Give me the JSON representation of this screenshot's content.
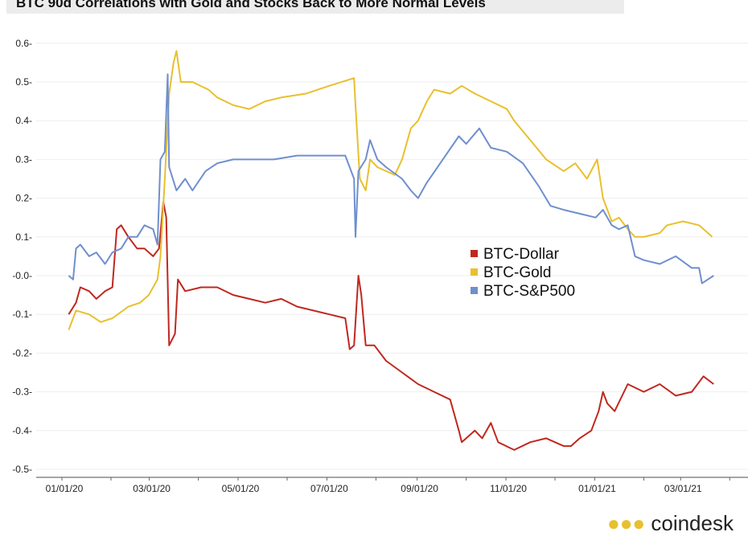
{
  "chart_data": {
    "type": "line",
    "title": "BTC 90d Correlations with Gold and Stocks Back to More Normal Levels",
    "xlabel": "",
    "ylabel": "",
    "x_unit": "days since 01/01/20",
    "xlim": [
      -8,
      460
    ],
    "ylim": [
      -0.5,
      0.6
    ],
    "yticks": [
      0.6,
      0.5,
      0.4,
      0.3,
      0.2,
      0.1,
      0.0,
      -0.1,
      -0.2,
      -0.3,
      -0.4,
      -0.5
    ],
    "ytick_labels": [
      "0.6",
      "0.5",
      "0.4",
      "0.3",
      "0.2",
      "0.1",
      "-0.0",
      "-0.1",
      "-0.2",
      "-0.3",
      "-0.4",
      "-0.5"
    ],
    "xticks": [
      0,
      60,
      121,
      182,
      244,
      305,
      366,
      425
    ],
    "xtick_labels": [
      "01/01/20",
      "03/01/20",
      "05/01/20",
      "07/01/20",
      "09/01/20",
      "11/01/20",
      "01/01/21",
      "03/01/21"
    ],
    "grid": true,
    "legend_position": "center-right",
    "series": [
      {
        "name": "BTC-Dollar",
        "color": "#c0281f",
        "points": [
          [
            3,
            -0.1
          ],
          [
            8,
            -0.07
          ],
          [
            11,
            -0.03
          ],
          [
            17,
            -0.04
          ],
          [
            22,
            -0.06
          ],
          [
            28,
            -0.04
          ],
          [
            33,
            -0.03
          ],
          [
            36,
            0.12
          ],
          [
            39,
            0.13
          ],
          [
            44,
            0.1
          ],
          [
            50,
            0.07
          ],
          [
            55,
            0.07
          ],
          [
            61,
            0.05
          ],
          [
            65,
            0.07
          ],
          [
            68,
            0.19
          ],
          [
            70,
            0.15
          ],
          [
            72,
            -0.18
          ],
          [
            76,
            -0.15
          ],
          [
            78,
            -0.01
          ],
          [
            83,
            -0.04
          ],
          [
            94,
            -0.03
          ],
          [
            105,
            -0.03
          ],
          [
            116,
            -0.05
          ],
          [
            127,
            -0.06
          ],
          [
            138,
            -0.07
          ],
          [
            149,
            -0.06
          ],
          [
            160,
            -0.08
          ],
          [
            171,
            -0.09
          ],
          [
            182,
            -0.1
          ],
          [
            193,
            -0.11
          ],
          [
            196,
            -0.19
          ],
          [
            199,
            -0.18
          ],
          [
            202,
            0.0
          ],
          [
            204,
            -0.05
          ],
          [
            207,
            -0.18
          ],
          [
            213,
            -0.18
          ],
          [
            221,
            -0.22
          ],
          [
            232,
            -0.25
          ],
          [
            243,
            -0.28
          ],
          [
            254,
            -0.3
          ],
          [
            265,
            -0.32
          ],
          [
            271,
            -0.4
          ],
          [
            273,
            -0.43
          ],
          [
            282,
            -0.4
          ],
          [
            287,
            -0.42
          ],
          [
            293,
            -0.38
          ],
          [
            298,
            -0.43
          ],
          [
            309,
            -0.45
          ],
          [
            320,
            -0.43
          ],
          [
            331,
            -0.42
          ],
          [
            343,
            -0.44
          ],
          [
            348,
            -0.44
          ],
          [
            354,
            -0.42
          ],
          [
            362,
            -0.4
          ],
          [
            367,
            -0.35
          ],
          [
            370,
            -0.3
          ],
          [
            373,
            -0.33
          ],
          [
            378,
            -0.35
          ],
          [
            387,
            -0.28
          ],
          [
            398,
            -0.3
          ],
          [
            409,
            -0.28
          ],
          [
            420,
            -0.31
          ],
          [
            431,
            -0.3
          ],
          [
            439,
            -0.26
          ],
          [
            446,
            -0.28
          ]
        ]
      },
      {
        "name": "BTC-Gold",
        "color": "#e8c02f",
        "points": [
          [
            3,
            -0.14
          ],
          [
            8,
            -0.09
          ],
          [
            17,
            -0.1
          ],
          [
            25,
            -0.12
          ],
          [
            33,
            -0.11
          ],
          [
            44,
            -0.08
          ],
          [
            52,
            -0.07
          ],
          [
            58,
            -0.05
          ],
          [
            64,
            -0.01
          ],
          [
            66,
            0.05
          ],
          [
            69,
            0.25
          ],
          [
            72,
            0.47
          ],
          [
            75,
            0.55
          ],
          [
            77,
            0.58
          ],
          [
            80,
            0.5
          ],
          [
            88,
            0.5
          ],
          [
            99,
            0.48
          ],
          [
            105,
            0.46
          ],
          [
            116,
            0.44
          ],
          [
            127,
            0.43
          ],
          [
            138,
            0.45
          ],
          [
            149,
            0.46
          ],
          [
            166,
            0.47
          ],
          [
            182,
            0.49
          ],
          [
            199,
            0.51
          ],
          [
            200,
            0.44
          ],
          [
            203,
            0.25
          ],
          [
            207,
            0.22
          ],
          [
            210,
            0.3
          ],
          [
            215,
            0.28
          ],
          [
            221,
            0.27
          ],
          [
            227,
            0.26
          ],
          [
            232,
            0.3
          ],
          [
            238,
            0.38
          ],
          [
            243,
            0.4
          ],
          [
            249,
            0.45
          ],
          [
            254,
            0.48
          ],
          [
            265,
            0.47
          ],
          [
            273,
            0.49
          ],
          [
            282,
            0.47
          ],
          [
            293,
            0.45
          ],
          [
            304,
            0.43
          ],
          [
            309,
            0.4
          ],
          [
            320,
            0.35
          ],
          [
            331,
            0.3
          ],
          [
            343,
            0.27
          ],
          [
            351,
            0.29
          ],
          [
            359,
            0.25
          ],
          [
            366,
            0.3
          ],
          [
            370,
            0.2
          ],
          [
            376,
            0.14
          ],
          [
            381,
            0.15
          ],
          [
            387,
            0.12
          ],
          [
            392,
            0.1
          ],
          [
            398,
            0.1
          ],
          [
            409,
            0.11
          ],
          [
            414,
            0.13
          ],
          [
            425,
            0.14
          ],
          [
            436,
            0.13
          ],
          [
            445,
            0.1
          ]
        ]
      },
      {
        "name": "BTC-S&P500",
        "color": "#6f8fce",
        "points": [
          [
            3,
            0.0
          ],
          [
            6,
            -0.01
          ],
          [
            8,
            0.07
          ],
          [
            11,
            0.08
          ],
          [
            17,
            0.05
          ],
          [
            22,
            0.06
          ],
          [
            28,
            0.03
          ],
          [
            33,
            0.06
          ],
          [
            39,
            0.07
          ],
          [
            44,
            0.1
          ],
          [
            50,
            0.1
          ],
          [
            55,
            0.13
          ],
          [
            61,
            0.12
          ],
          [
            64,
            0.08
          ],
          [
            66,
            0.3
          ],
          [
            69,
            0.32
          ],
          [
            71,
            0.52
          ],
          [
            72,
            0.28
          ],
          [
            77,
            0.22
          ],
          [
            83,
            0.25
          ],
          [
            88,
            0.22
          ],
          [
            97,
            0.27
          ],
          [
            105,
            0.29
          ],
          [
            116,
            0.3
          ],
          [
            127,
            0.3
          ],
          [
            144,
            0.3
          ],
          [
            160,
            0.31
          ],
          [
            177,
            0.31
          ],
          [
            193,
            0.31
          ],
          [
            199,
            0.25
          ],
          [
            200,
            0.1
          ],
          [
            202,
            0.27
          ],
          [
            207,
            0.3
          ],
          [
            210,
            0.35
          ],
          [
            215,
            0.3
          ],
          [
            221,
            0.28
          ],
          [
            232,
            0.25
          ],
          [
            238,
            0.22
          ],
          [
            243,
            0.2
          ],
          [
            249,
            0.24
          ],
          [
            260,
            0.3
          ],
          [
            271,
            0.36
          ],
          [
            276,
            0.34
          ],
          [
            285,
            0.38
          ],
          [
            293,
            0.33
          ],
          [
            304,
            0.32
          ],
          [
            315,
            0.29
          ],
          [
            326,
            0.23
          ],
          [
            334,
            0.18
          ],
          [
            343,
            0.17
          ],
          [
            354,
            0.16
          ],
          [
            365,
            0.15
          ],
          [
            370,
            0.17
          ],
          [
            376,
            0.13
          ],
          [
            381,
            0.12
          ],
          [
            387,
            0.13
          ],
          [
            392,
            0.05
          ],
          [
            398,
            0.04
          ],
          [
            409,
            0.03
          ],
          [
            420,
            0.05
          ],
          [
            431,
            0.02
          ],
          [
            436,
            0.02
          ],
          [
            438,
            -0.02
          ],
          [
            442,
            -0.01
          ],
          [
            446,
            0.0
          ]
        ]
      }
    ]
  },
  "branding": {
    "logo": "coindesk"
  }
}
